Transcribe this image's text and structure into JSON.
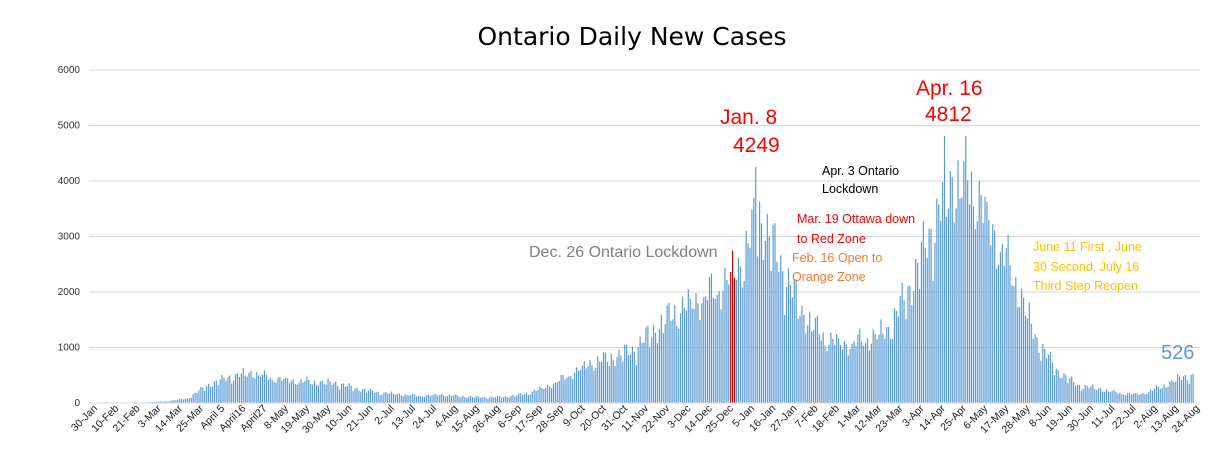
{
  "chart_data": {
    "type": "bar",
    "title": "Ontario Daily New Cases",
    "xlabel": "",
    "ylabel": "",
    "ylim": [
      0,
      6000
    ],
    "yticks": [
      0,
      1000,
      2000,
      3000,
      4000,
      5000,
      6000
    ],
    "grid": true,
    "legend": "none",
    "colors": {
      "bar": "#5b9bd5",
      "highlight": "#c00000",
      "title": "#000000",
      "peak": "#ff0000",
      "black_note": "#000000",
      "red_note": "#ff0000",
      "orange_note": "#ed7d31",
      "yellow_note": "#ffc000",
      "grey_note": "#7f7f7f",
      "last": "#5b9bd5"
    },
    "start_date": "2020-01-30",
    "end_date": "2021-08-24",
    "x_tick_labels": [
      "30-Jan",
      "10-Feb",
      "21-Feb",
      "3-Mar",
      "14-Mar",
      "25-Mar",
      "April 5",
      "April16",
      "April27",
      "8-May",
      "19-May",
      "30-May",
      "10-Jun",
      "21-Jun",
      "2-Jul",
      "13-Jul",
      "24-Jul",
      "4-Aug",
      "15-Aug",
      "26-Aug",
      "6-Sep",
      "17-Sep",
      "28-Sep",
      "9-Oct",
      "20-Oct",
      "31-Oct",
      "11-Nov",
      "22-Nov",
      "3-Dec",
      "14-Dec",
      "25-Dec",
      "5-Jan",
      "16-Jan",
      "27-Jan",
      "7-Feb",
      "18-Feb",
      "1-Mar",
      "12-Mar",
      "23-Mar",
      "3-Apr",
      "14-Apr",
      "25-Apr",
      "6-May",
      "17-May",
      "28-May",
      "8-Jun",
      "19-Jun",
      "30-Jun",
      "11-Jul",
      "22-Jul",
      "2-Aug",
      "13-Aug",
      "24-Aug"
    ],
    "series": [
      {
        "values_by_11day_period": [
          5,
          2,
          10,
          30,
          80,
          330,
          470,
          550,
          450,
          400,
          380,
          360,
          260,
          190,
          160,
          130,
          150,
          120,
          100,
          110,
          170,
          300,
          500,
          720,
          820,
          950,
          1300,
          1650,
          1850,
          2050,
          2450,
          3400,
          2500,
          1650,
          1200,
          1050,
          1150,
          1300,
          2000,
          3000,
          4000,
          4000,
          3100,
          2300,
          1200,
          600,
          320,
          260,
          175,
          160,
          300,
          480
        ]
      }
    ],
    "annotations": [
      {
        "id": "jan8_date",
        "text": "Jan. 8"
      },
      {
        "id": "jan8_value",
        "text": "4249"
      },
      {
        "id": "apr16_date",
        "text": "Apr. 16"
      },
      {
        "id": "apr16_value",
        "text": "4812"
      },
      {
        "id": "apr3_line1",
        "text": "Apr. 3 Ontario"
      },
      {
        "id": "apr3_line2",
        "text": "Lockdown"
      },
      {
        "id": "mar19_line1",
        "text": "Mar. 19 Ottawa down"
      },
      {
        "id": "mar19_line2",
        "text": "to Red Zone"
      },
      {
        "id": "feb16_line1",
        "text": "Feb. 16 Open to"
      },
      {
        "id": "feb16_line2",
        "text": "Orange Zone"
      },
      {
        "id": "dec26",
        "text": "Dec. 26 Ontario Lockdown"
      },
      {
        "id": "june_line1",
        "text": "June 11 First , June"
      },
      {
        "id": "june_line2",
        "text": "30 Second, July 16"
      },
      {
        "id": "june_line3",
        "text": "Third Step Reopen"
      },
      {
        "id": "last_value",
        "text": "526"
      }
    ],
    "key_points": [
      {
        "date": "2021-01-08",
        "value": 4249
      },
      {
        "date": "2021-04-16",
        "value": 4812
      },
      {
        "date": "2021-08-23",
        "value": 526
      }
    ]
  }
}
